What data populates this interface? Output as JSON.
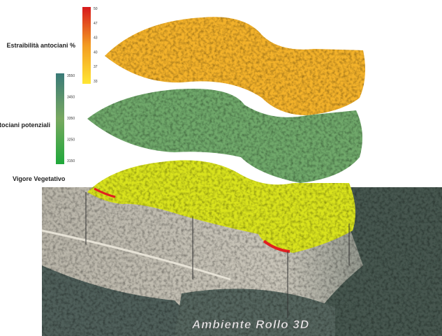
{
  "layers": [
    {
      "title": "Estraibilità antociani %",
      "legend_ticks": [
        "50",
        "47",
        "43",
        "40",
        "37",
        "33"
      ]
    },
    {
      "title": "Antociani potenziali",
      "legend_ticks": [
        "3550",
        "3450",
        "3350",
        "3250",
        "3150"
      ]
    },
    {
      "title": "Vigore Vegetativo"
    }
  ],
  "footer": "Ambiente Rollo 3D"
}
